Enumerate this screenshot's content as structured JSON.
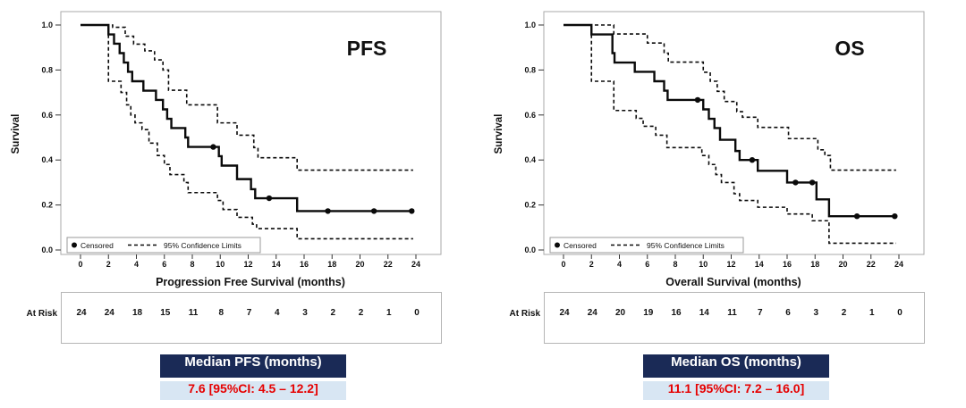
{
  "colors": {
    "curve": "#0a0a0a",
    "ci_curve": "#0a0a0a",
    "frame": "#a9a9a9",
    "legend_border": "#9a9a9a",
    "median_header_bg": "#1a2a56",
    "median_header_text": "#ffffff",
    "median_value_bg": "#d8e6f3",
    "median_value_text": "#e60000"
  },
  "chart_data": [
    {
      "id": "pfs",
      "type": "line",
      "subtype": "kaplan-meier-step",
      "title": "PFS",
      "xlabel": "Progression Free Survival (months)",
      "ylabel": "Survival",
      "xlim": [
        -1.4,
        25.8
      ],
      "ylim": [
        0.0,
        1.0
      ],
      "xticks": [
        0,
        2,
        4,
        6,
        8,
        10,
        12,
        14,
        16,
        18,
        20,
        22,
        24
      ],
      "yticks": [
        "0.0",
        "0.2",
        "0.4",
        "0.6",
        "0.8",
        "1.0"
      ],
      "grid": false,
      "legend_position": "bottom-left-inside",
      "legend": [
        {
          "marker": "censored-dot",
          "label": "Censored"
        },
        {
          "marker": "dashed-line",
          "label": "95% Confidence Limits"
        }
      ],
      "survival": [
        [
          0,
          1.0
        ],
        [
          2,
          0.958
        ],
        [
          2.4,
          0.917
        ],
        [
          2.8,
          0.875
        ],
        [
          3.1,
          0.833
        ],
        [
          3.4,
          0.792
        ],
        [
          3.7,
          0.75
        ],
        [
          4.5,
          0.708
        ],
        [
          5.4,
          0.667
        ],
        [
          5.9,
          0.625
        ],
        [
          6.2,
          0.583
        ],
        [
          6.5,
          0.542
        ],
        [
          7.5,
          0.5
        ],
        [
          7.7,
          0.458
        ],
        [
          9.9,
          0.417
        ],
        [
          10.1,
          0.375
        ],
        [
          11.2,
          0.315
        ],
        [
          12.2,
          0.27
        ],
        [
          12.5,
          0.23
        ],
        [
          15.5,
          0.173
        ],
        [
          23.7,
          0.173
        ]
      ],
      "censored": [
        [
          9.5,
          0.458
        ],
        [
          13.5,
          0.23
        ],
        [
          17.7,
          0.173
        ],
        [
          21.0,
          0.173
        ],
        [
          23.7,
          0.173
        ]
      ],
      "upper_ci": [
        [
          0,
          1.0
        ],
        [
          2.3,
          0.99
        ],
        [
          3.2,
          0.95
        ],
        [
          3.8,
          0.915
        ],
        [
          4.6,
          0.885
        ],
        [
          5.3,
          0.845
        ],
        [
          5.9,
          0.8
        ],
        [
          6.3,
          0.71
        ],
        [
          7.6,
          0.645
        ],
        [
          9.8,
          0.565
        ],
        [
          11.2,
          0.51
        ],
        [
          12.4,
          0.455
        ],
        [
          12.7,
          0.41
        ],
        [
          15.5,
          0.355
        ],
        [
          23.8,
          0.355
        ]
      ],
      "lower_ci": [
        [
          0,
          1.0
        ],
        [
          2,
          0.75
        ],
        [
          2.9,
          0.7
        ],
        [
          3.3,
          0.645
        ],
        [
          3.6,
          0.6
        ],
        [
          3.9,
          0.565
        ],
        [
          4.4,
          0.535
        ],
        [
          4.9,
          0.475
        ],
        [
          5.5,
          0.42
        ],
        [
          6.0,
          0.38
        ],
        [
          6.4,
          0.335
        ],
        [
          7.4,
          0.3
        ],
        [
          7.7,
          0.255
        ],
        [
          9.8,
          0.22
        ],
        [
          10.2,
          0.18
        ],
        [
          11.2,
          0.145
        ],
        [
          12.3,
          0.115
        ],
        [
          12.6,
          0.095
        ],
        [
          15.5,
          0.05
        ],
        [
          23.8,
          0.05
        ]
      ],
      "at_risk": {
        "label": "At Risk",
        "times": [
          0,
          2,
          4,
          6,
          8,
          10,
          12,
          14,
          16,
          18,
          20,
          22,
          24
        ],
        "counts": [
          24,
          24,
          18,
          15,
          11,
          8,
          7,
          4,
          3,
          2,
          2,
          1,
          0
        ]
      },
      "median": {
        "header": "Median PFS (months)",
        "value": "7.6 [95%CI: 4.5 – 12.2]"
      }
    },
    {
      "id": "os",
      "type": "line",
      "subtype": "kaplan-meier-step",
      "title": "OS",
      "xlabel": "Overall Survival (months)",
      "ylabel": "Survival",
      "xlim": [
        -1.4,
        25.8
      ],
      "ylim": [
        0.0,
        1.0
      ],
      "xticks": [
        0,
        2,
        4,
        6,
        8,
        10,
        12,
        14,
        16,
        18,
        20,
        22,
        24
      ],
      "yticks": [
        "0.0",
        "0.2",
        "0.4",
        "0.6",
        "0.8",
        "1.0"
      ],
      "grid": false,
      "legend_position": "bottom-left-inside",
      "legend": [
        {
          "marker": "censored-dot",
          "label": "Censored"
        },
        {
          "marker": "dashed-line",
          "label": "95% Confidence Limits"
        }
      ],
      "survival": [
        [
          0,
          1.0
        ],
        [
          2,
          0.958
        ],
        [
          3.5,
          0.875
        ],
        [
          3.65,
          0.833
        ],
        [
          5.1,
          0.792
        ],
        [
          6.5,
          0.75
        ],
        [
          7.2,
          0.708
        ],
        [
          7.45,
          0.667
        ],
        [
          10.0,
          0.625
        ],
        [
          10.4,
          0.583
        ],
        [
          10.8,
          0.542
        ],
        [
          11.2,
          0.49
        ],
        [
          12.3,
          0.44
        ],
        [
          12.6,
          0.4
        ],
        [
          13.9,
          0.352
        ],
        [
          16.0,
          0.3
        ],
        [
          18.1,
          0.225
        ],
        [
          19.0,
          0.15
        ],
        [
          23.7,
          0.15
        ]
      ],
      "censored": [
        [
          9.6,
          0.667
        ],
        [
          13.5,
          0.4
        ],
        [
          16.6,
          0.3
        ],
        [
          17.8,
          0.3
        ],
        [
          21.0,
          0.15
        ],
        [
          23.7,
          0.15
        ]
      ],
      "upper_ci": [
        [
          0,
          1.0
        ],
        [
          3.6,
          0.96
        ],
        [
          6.0,
          0.92
        ],
        [
          7.2,
          0.875
        ],
        [
          7.5,
          0.835
        ],
        [
          10.0,
          0.79
        ],
        [
          10.5,
          0.75
        ],
        [
          11.0,
          0.705
        ],
        [
          11.5,
          0.66
        ],
        [
          12.4,
          0.615
        ],
        [
          12.8,
          0.59
        ],
        [
          13.9,
          0.545
        ],
        [
          16.1,
          0.495
        ],
        [
          18.2,
          0.445
        ],
        [
          18.7,
          0.42
        ],
        [
          19.1,
          0.355
        ],
        [
          23.8,
          0.355
        ]
      ],
      "lower_ci": [
        [
          0,
          1.0
        ],
        [
          2,
          0.75
        ],
        [
          3.6,
          0.62
        ],
        [
          5.2,
          0.585
        ],
        [
          5.7,
          0.55
        ],
        [
          6.6,
          0.51
        ],
        [
          7.4,
          0.455
        ],
        [
          9.9,
          0.42
        ],
        [
          10.4,
          0.38
        ],
        [
          10.9,
          0.335
        ],
        [
          11.3,
          0.3
        ],
        [
          12.2,
          0.25
        ],
        [
          12.6,
          0.22
        ],
        [
          13.9,
          0.19
        ],
        [
          16.0,
          0.16
        ],
        [
          17.8,
          0.13
        ],
        [
          19.0,
          0.03
        ],
        [
          23.8,
          0.03
        ]
      ],
      "at_risk": {
        "label": "At Risk",
        "times": [
          0,
          2,
          4,
          6,
          8,
          10,
          12,
          14,
          16,
          18,
          20,
          22,
          24
        ],
        "counts": [
          24,
          24,
          20,
          19,
          16,
          14,
          11,
          7,
          6,
          3,
          2,
          1,
          0
        ]
      },
      "median": {
        "header": "Median OS (months)",
        "value": "11.1 [95%CI: 7.2 – 16.0]"
      }
    }
  ]
}
